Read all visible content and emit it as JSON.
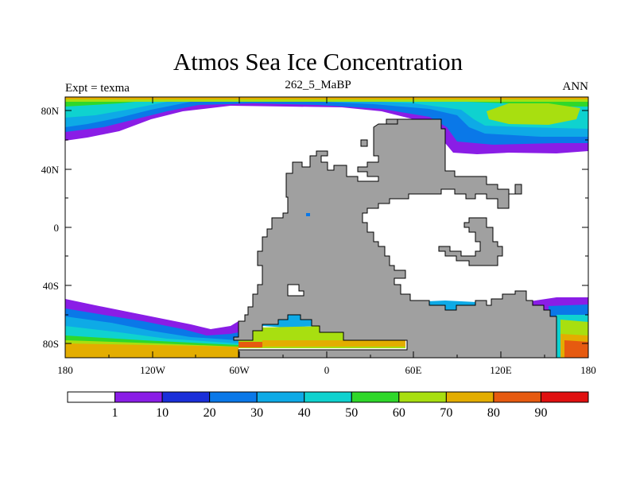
{
  "title": "Atmos Sea Ice Concentration",
  "subtitle": "262_5_MaBP",
  "left_label": "Expt = texma",
  "right_label": "ANN",
  "axes": {
    "x_ticks": [
      "180",
      "120W",
      "60W",
      "0",
      "60E",
      "120E",
      "180"
    ],
    "y_ticks": [
      "80N",
      "40N",
      "0",
      "40S",
      "80S"
    ]
  },
  "colorbar": {
    "labels": [
      "1",
      "10",
      "20",
      "30",
      "40",
      "50",
      "60",
      "70",
      "80",
      "90"
    ],
    "colors": [
      "#ffffff",
      "#8a1de6",
      "#1a2fd9",
      "#0a78e8",
      "#0eaae6",
      "#0fd2cf",
      "#2fd82a",
      "#a8df10",
      "#e3ad00",
      "#e65a10",
      "#e01010"
    ]
  },
  "land_color": "#a0a0a0"
}
